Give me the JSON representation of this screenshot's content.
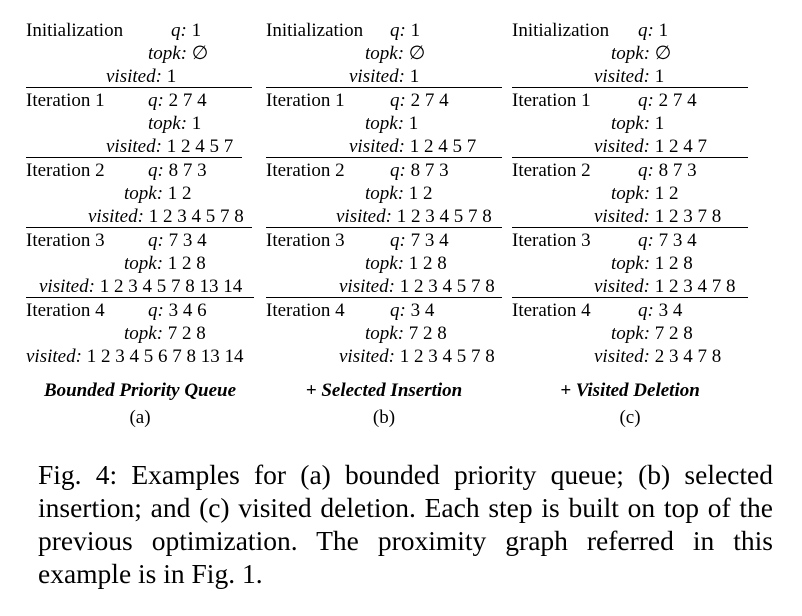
{
  "panels": [
    {
      "blocks": [
        {
          "label": "Initialization",
          "q": "1",
          "topk": "∅",
          "visited": "1"
        },
        {
          "label": "Iteration 1",
          "q": "2 7 4",
          "topk": "1",
          "visited": "1 2 4 5 7"
        },
        {
          "label": "Iteration 2",
          "q": "8 7 3",
          "topk": "1 2",
          "visited": "1 2 3 4 5 7 8"
        },
        {
          "label": "Iteration 3",
          "q": "7 3 4",
          "topk": "1 2 8",
          "visited": "1 2 3 4 5 7 8 13 14"
        },
        {
          "label": "Iteration 4",
          "q": "3 4 6",
          "topk": "7 2 8",
          "visited": "1 2 3 4 5 6 7 8 13 14"
        }
      ],
      "title": "Bounded Priority Queue",
      "sub": "(a)"
    },
    {
      "blocks": [
        {
          "label": "Initialization",
          "q": "1",
          "topk": "∅",
          "visited": "1"
        },
        {
          "label": "Iteration 1",
          "q": "2 7 4",
          "topk": "1",
          "visited": "1 2 4 5 7"
        },
        {
          "label": "Iteration 2",
          "q": "8 7 3",
          "topk": "1 2",
          "visited": "1 2 3 4 5 7 8"
        },
        {
          "label": "Iteration 3",
          "q": "7 3 4",
          "topk": "1 2 8",
          "visited": "1 2 3 4 5 7 8"
        },
        {
          "label": "Iteration 4",
          "q": "3 4",
          "topk": "7 2 8",
          "visited": "1 2 3 4 5 7 8"
        }
      ],
      "title": "+ Selected Insertion",
      "sub": "(b)"
    },
    {
      "blocks": [
        {
          "label": "Initialization",
          "q": "1",
          "topk": "∅",
          "visited": "1"
        },
        {
          "label": "Iteration 1",
          "q": "2 7 4",
          "topk": "1",
          "visited": "1 2 4 7"
        },
        {
          "label": "Iteration 2",
          "q": "8 7 3",
          "topk": "1 2",
          "visited": "1 2 3 7 8"
        },
        {
          "label": "Iteration 3",
          "q": "7 3 4",
          "topk": "1 2 8",
          "visited": "1 2 3 4 7 8"
        },
        {
          "label": "Iteration 4",
          "q": "3 4",
          "topk": "7 2 8",
          "visited": "2 3 4 7 8"
        }
      ],
      "title": "+ Visited Deletion",
      "sub": "(c)"
    }
  ],
  "keys": {
    "q": "q:",
    "topk": "topk:",
    "visited": "visited:"
  },
  "caption": "Fig. 4: Examples for (a) bounded priority queue; (b) selected insertion; and (c) visited deletion. Each step is built on top of the previous optimization. The proximity graph referred in this example is in Fig. 1."
}
